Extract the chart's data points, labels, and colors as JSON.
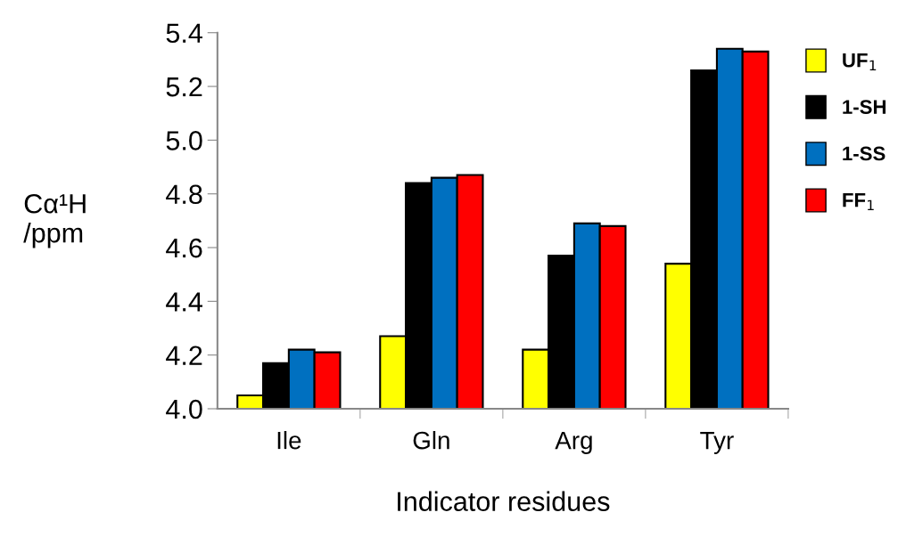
{
  "chart_data": {
    "type": "bar",
    "xlabel": "Indicator residues",
    "ylabel": "Cα¹H\n/ppm",
    "categories": [
      "Ile",
      "Gln",
      "Arg",
      "Tyr"
    ],
    "series": [
      {
        "name": "UF$_{1}$",
        "color": "#ffff00",
        "values": [
          4.05,
          4.27,
          4.22,
          4.54
        ]
      },
      {
        "name": "1-SH",
        "color": "#000000",
        "values": [
          4.17,
          4.84,
          4.57,
          5.26
        ]
      },
      {
        "name": "1-SS",
        "color": "#0070c0",
        "values": [
          4.22,
          4.86,
          4.69,
          5.34
        ]
      },
      {
        "name": "FF$_{1}$",
        "color": "#ff0000",
        "values": [
          4.21,
          4.87,
          4.68,
          5.33
        ]
      }
    ],
    "ylim": [
      4.0,
      5.4
    ],
    "yticks": [
      {
        "value": 4.0,
        "label": "4.0"
      },
      {
        "value": 4.2,
        "label": "4.2"
      },
      {
        "value": 4.4,
        "label": "4.4"
      },
      {
        "value": 4.6,
        "label": "4.6"
      },
      {
        "value": 4.8,
        "label": "4.8"
      },
      {
        "value": 5.0,
        "label": "5.0"
      },
      {
        "value": 5.2,
        "label": "5.2"
      },
      {
        "value": 5.4,
        "label": "5.4"
      }
    ],
    "grid": false,
    "legend": "right"
  }
}
